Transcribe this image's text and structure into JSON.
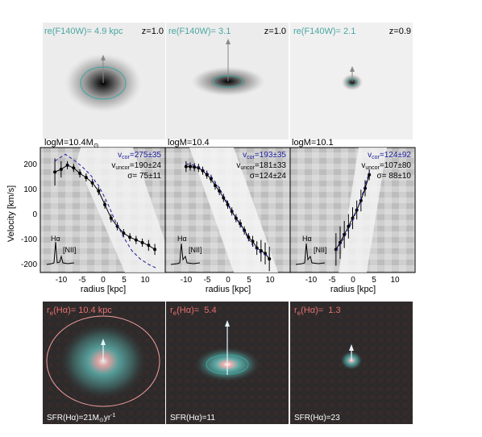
{
  "top_row": [
    {
      "re_label": "re(F140W)= 4.9 kpc",
      "z_label": "z=1.0",
      "mass_label": "logM=10.4M",
      "mass_sub": "⊙"
    },
    {
      "re_label": "re(F140W)= 3.1",
      "z_label": "z=1.0",
      "mass_label": "logM=10.4",
      "mass_sub": ""
    },
    {
      "re_label": "re(F140W)= 2.1",
      "z_label": "z=0.9",
      "mass_label": "logM=10.1",
      "mass_sub": ""
    }
  ],
  "middle_row": {
    "ylabel": "Velocity [km/s]",
    "xlabel": "radius [kpc]",
    "yticks": [
      "200",
      "100",
      "0",
      "-100",
      "-200"
    ],
    "xticks": [
      "-10",
      "-5",
      "0",
      "5",
      "10"
    ],
    "panels": [
      {
        "vcor_label": "v",
        "vcor_sub": "cor",
        "vcor_value": "=275±35",
        "vuncor_label": "v",
        "vuncor_sub": "uncor",
        "vuncor_value": "=190±24",
        "sigma_label": "σ",
        "sigma_value": "= 75±11",
        "ha": "Hα",
        "nii": "[NII]"
      },
      {
        "vcor_label": "v",
        "vcor_sub": "cor",
        "vcor_value": "=193±35",
        "vuncor_label": "v",
        "vuncor_sub": "uncor",
        "vuncor_value": "=181±33",
        "sigma_label": "σ",
        "sigma_value": "=124±24",
        "ha": "Hα",
        "nii": "[NII]"
      },
      {
        "vcor_label": "v",
        "vcor_sub": "cor",
        "vcor_value": "=124±92",
        "vuncor_label": "v",
        "vuncor_sub": "uncor",
        "vuncor_value": "=107±80",
        "sigma_label": "σ",
        "sigma_value": "= 88±10",
        "ha": "Hα",
        "nii": "[NII]"
      }
    ]
  },
  "bottom_row": [
    {
      "re_label": "r",
      "re_sub": "e",
      "re_value": "(Hα)= 10.4 kpc",
      "sfr_label": "SFR(Hα)=21M",
      "sfr_unit": "yr",
      "sfr_sup": "-1"
    },
    {
      "re_label": "r",
      "re_sub": "e",
      "re_value": "(Hα)=  5.4",
      "sfr_label": "SFR(Hα)=11",
      "sfr_unit": "",
      "sfr_sup": ""
    },
    {
      "re_label": "r",
      "re_sub": "e",
      "re_value": "(Hα)=  1.3",
      "sfr_label": "SFR(Hα)=23",
      "sfr_unit": "",
      "sfr_sup": ""
    }
  ],
  "chart_data": [
    {
      "type": "line",
      "xlabel": "radius [kpc]",
      "ylabel": "Velocity [km/s]",
      "xlim": [
        -15,
        15
      ],
      "ylim": [
        -210,
        250
      ],
      "series": [
        {
          "x": [
            -11.5,
            -10,
            -8.5,
            -7,
            -5.5,
            -4,
            -2.5,
            -1,
            0.5,
            2,
            3.5,
            5,
            6.5,
            8,
            9.5,
            11,
            12.5
          ],
          "values": [
            160,
            170,
            185,
            175,
            155,
            140,
            120,
            90,
            40,
            -10,
            -40,
            -65,
            -80,
            -90,
            -100,
            -110,
            -125
          ],
          "err": [
            50,
            30,
            15,
            15,
            15,
            15,
            15,
            15,
            15,
            15,
            15,
            15,
            15,
            15,
            15,
            20,
            20
          ]
        },
        {
          "x": [
            -11.5,
            -9,
            -7,
            -5,
            -3,
            -1,
            1,
            3,
            5,
            7,
            9,
            11,
            13
          ],
          "values": [
            200,
            225,
            205,
            180,
            150,
            110,
            50,
            -20,
            -80,
            -130,
            -160,
            -180,
            -195
          ],
          "style": "dashed",
          "color": "#1a1a99"
        }
      ]
    },
    {
      "type": "line",
      "xlabel": "radius [kpc]",
      "ylabel": "Velocity [km/s]",
      "xlim": [
        -15,
        15
      ],
      "ylim": [
        -210,
        250
      ],
      "series": [
        {
          "x": [
            -10,
            -9,
            -8,
            -7,
            -6,
            -5,
            -4,
            -3,
            -2,
            -1,
            0,
            1,
            2,
            3,
            4,
            5,
            6,
            7,
            8,
            9,
            10
          ],
          "values": [
            180,
            180,
            178,
            175,
            165,
            150,
            135,
            110,
            90,
            65,
            40,
            15,
            -10,
            -30,
            -55,
            -80,
            -95,
            -120,
            -130,
            -140,
            -160
          ],
          "err": [
            20,
            15,
            15,
            15,
            15,
            15,
            15,
            15,
            15,
            15,
            15,
            15,
            15,
            15,
            15,
            15,
            20,
            25,
            40,
            40,
            45
          ]
        },
        {
          "x": [
            -10,
            -8,
            -6,
            -4,
            -2,
            0,
            2,
            4,
            6,
            8,
            10
          ],
          "values": [
            190,
            185,
            170,
            145,
            100,
            45,
            -10,
            -60,
            -110,
            -140,
            -150
          ],
          "style": "dashed",
          "color": "#1a1a99"
        }
      ]
    },
    {
      "type": "line",
      "xlabel": "radius [kpc]",
      "ylabel": "Velocity [km/s]",
      "xlim": [
        -15,
        15
      ],
      "ylim": [
        -210,
        250
      ],
      "series": [
        {
          "x": [
            -4,
            -3,
            -2,
            -1,
            0,
            1,
            2,
            3,
            4
          ],
          "values": [
            -125,
            -100,
            -70,
            -40,
            -10,
            20,
            55,
            100,
            150
          ],
          "err": [
            60,
            60,
            50,
            45,
            40,
            35,
            40,
            30,
            20
          ]
        },
        {
          "x": [
            -4,
            -2,
            0,
            2,
            4
          ],
          "values": [
            -130,
            -80,
            -20,
            60,
            160
          ],
          "style": "dashed",
          "color": "#1a1a99"
        }
      ]
    }
  ]
}
